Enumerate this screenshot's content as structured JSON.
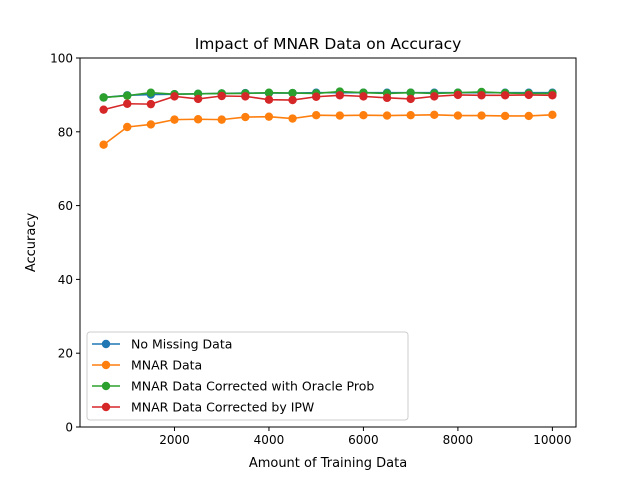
{
  "chart_data": {
    "type": "line",
    "title": "Impact of MNAR Data on Accuracy",
    "xlabel": "Amount of Training Data",
    "ylabel": "Accuracy",
    "xlim": [
      0,
      10500
    ],
    "ylim": [
      0,
      100
    ],
    "xticks": [
      2000,
      4000,
      6000,
      8000,
      10000
    ],
    "yticks": [
      0,
      20,
      40,
      60,
      80,
      100
    ],
    "legend_position": "lower-left",
    "x": [
      500,
      1000,
      1500,
      2000,
      2500,
      3000,
      3500,
      4000,
      4500,
      5000,
      5500,
      6000,
      6500,
      7000,
      7500,
      8000,
      8500,
      9000,
      9500,
      10000
    ],
    "series": [
      {
        "name": "No Missing Data",
        "color": "#1f77b4",
        "values": [
          89.3,
          89.9,
          90.1,
          90.2,
          90.3,
          90.4,
          90.5,
          90.5,
          90.5,
          90.6,
          90.6,
          90.6,
          90.6,
          90.6,
          90.6,
          90.6,
          90.6,
          90.6,
          90.6,
          90.6
        ]
      },
      {
        "name": "MNAR Data",
        "color": "#ff7f0e",
        "values": [
          76.5,
          81.3,
          82.0,
          83.3,
          83.4,
          83.3,
          84.0,
          84.1,
          83.6,
          84.5,
          84.4,
          84.5,
          84.4,
          84.5,
          84.6,
          84.4,
          84.4,
          84.3,
          84.3,
          84.6
        ]
      },
      {
        "name": "MNAR Data Corrected with Oracle Prob",
        "color": "#2ca02c",
        "values": [
          89.3,
          89.8,
          90.6,
          90.2,
          90.3,
          90.4,
          90.4,
          90.6,
          90.5,
          90.4,
          90.9,
          90.6,
          90.4,
          90.6,
          90.4,
          90.6,
          90.8,
          90.5,
          90.4,
          90.4
        ]
      },
      {
        "name": "MNAR Data Corrected by IPW",
        "color": "#d62728",
        "values": [
          86.0,
          87.6,
          87.5,
          89.6,
          88.9,
          89.7,
          89.6,
          88.7,
          88.6,
          89.5,
          89.9,
          89.6,
          89.2,
          88.9,
          89.6,
          90.0,
          89.9,
          89.9,
          90.0,
          89.9
        ]
      }
    ]
  }
}
